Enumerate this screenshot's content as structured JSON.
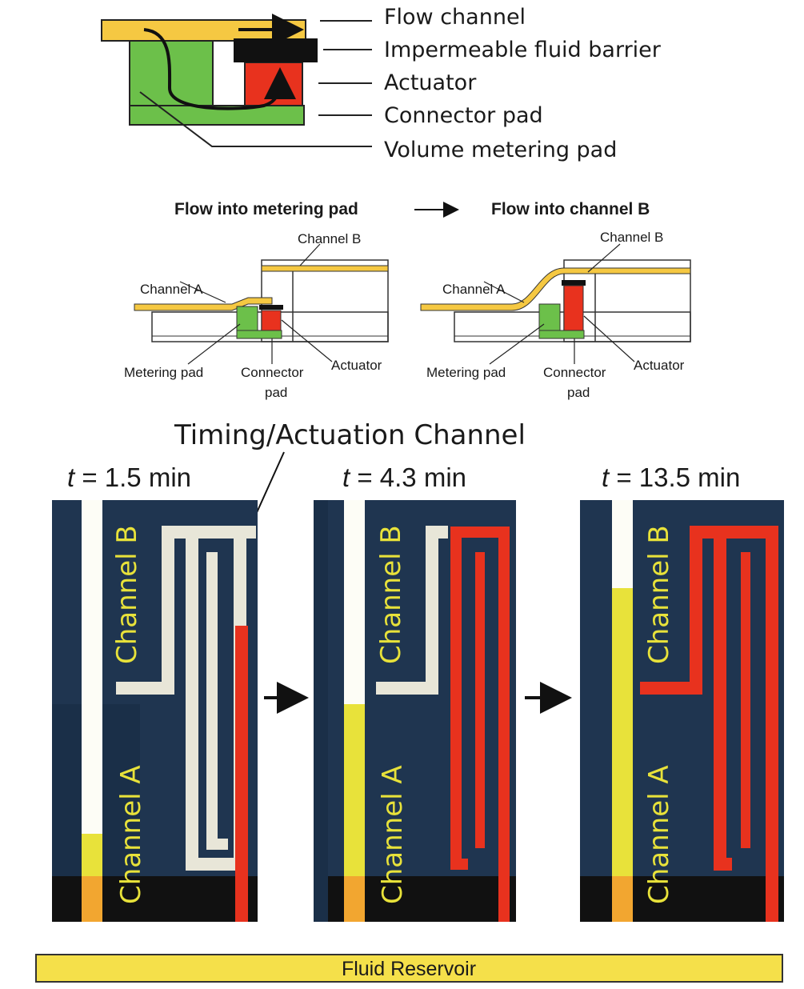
{
  "legend": {
    "flow_channel": "Flow channel",
    "barrier": "Impermeable fluid barrier",
    "actuator": "Actuator",
    "connector_pad": "Connector pad",
    "metering_pad": "Volume metering pad"
  },
  "sequence": {
    "left_title": "Flow into metering pad",
    "right_title": "Flow into channel B",
    "channel_a": "Channel A",
    "channel_b": "Channel B",
    "metering_pad": "Metering pad",
    "connector_line1": "Connector",
    "connector_line2": "pad",
    "actuator": "Actuator"
  },
  "photos": {
    "timing_label": "Timing/Actuation Channel",
    "t_var": "t",
    "times": [
      "= 1.5 min",
      "= 4.3 min",
      "= 13.5 min"
    ],
    "channel_a": "Channel A",
    "channel_b": "Channel B",
    "reservoir": "Fluid Reservoir"
  },
  "colors": {
    "yellow": "#f5c842",
    "green": "#6cc04a",
    "red": "#e8321e",
    "black": "#111111",
    "device_blue": "#1f3550"
  }
}
